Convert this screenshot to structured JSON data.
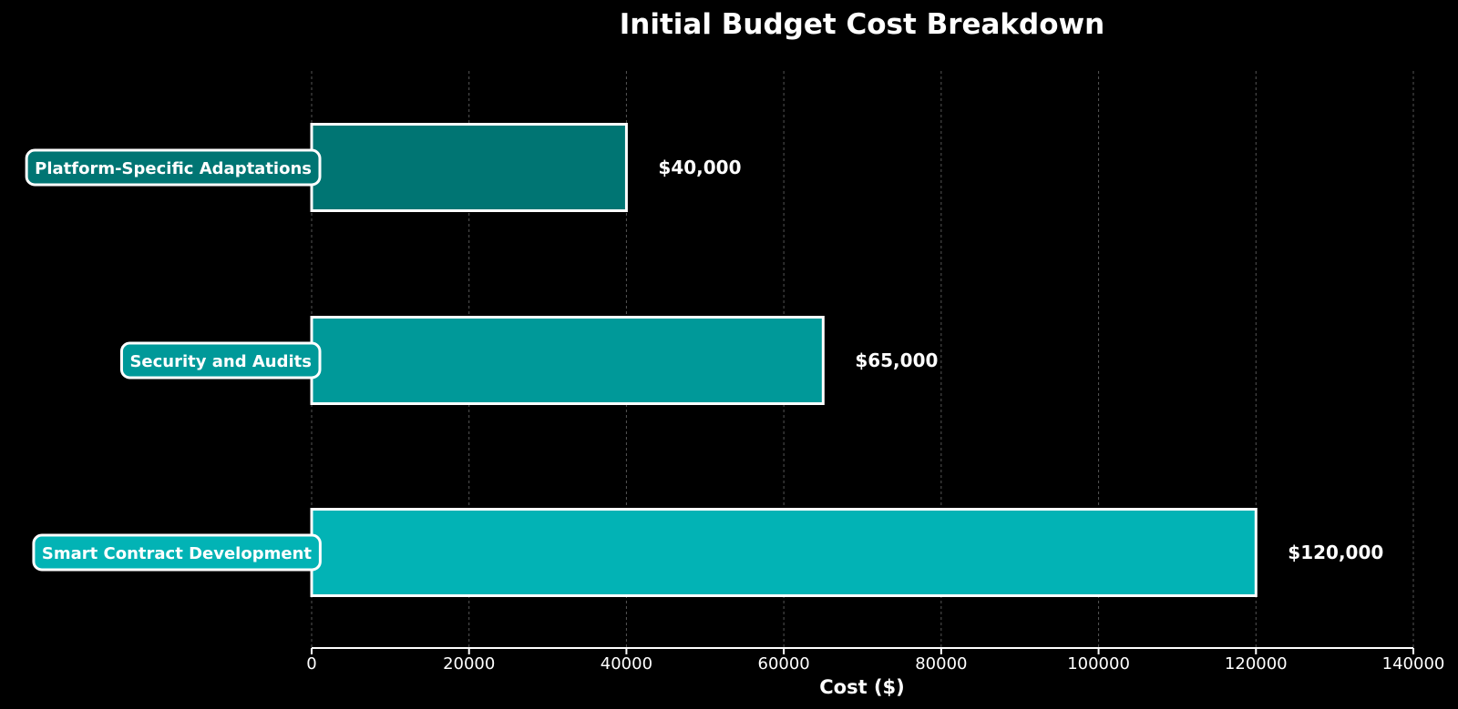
{
  "chart_data": {
    "type": "bar",
    "orientation": "horizontal",
    "title": "Initial Budget Cost Breakdown",
    "xlabel": "Cost ($)",
    "ylabel": "",
    "categories": [
      "Platform-Specific Adaptations",
      "Security and Audits",
      "Smart Contract Development"
    ],
    "values": [
      40000,
      65000,
      120000
    ],
    "value_labels": [
      "$40,000",
      "$65,000",
      "$120,000"
    ],
    "colors": [
      "#007573",
      "#009999",
      "#02b3b5"
    ],
    "xlim": [
      0,
      140000
    ],
    "xticks": [
      0,
      20000,
      40000,
      60000,
      80000,
      100000,
      120000,
      140000
    ],
    "xtick_labels": [
      "0",
      "20000",
      "40000",
      "60000",
      "80000",
      "100000",
      "120000",
      "140000"
    ],
    "grid": "vertical-dashed",
    "background": "#000000",
    "text_color": "#ffffff"
  }
}
